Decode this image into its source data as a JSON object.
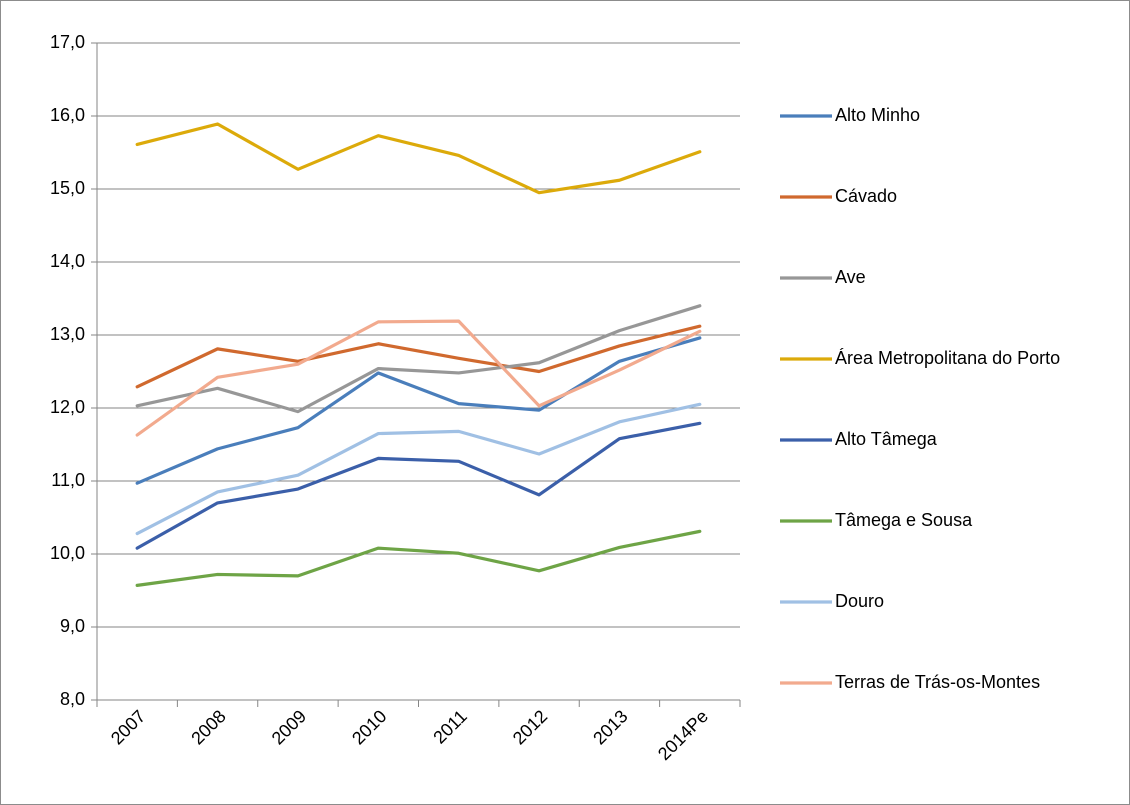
{
  "chart_data": {
    "type": "line",
    "categories": [
      "2007",
      "2008",
      "2009",
      "2010",
      "2011",
      "2012",
      "2013",
      "2014Pe"
    ],
    "series": [
      {
        "name": "Alto Minho",
        "color": "#4a7ebb",
        "values": [
          10.97,
          11.44,
          11.73,
          12.48,
          12.06,
          11.97,
          12.64,
          12.96
        ]
      },
      {
        "name": "Cávado",
        "color": "#d0692e",
        "values": [
          12.29,
          12.81,
          12.64,
          12.88,
          12.68,
          12.5,
          12.85,
          13.12
        ]
      },
      {
        "name": "Ave",
        "color": "#979797",
        "values": [
          12.03,
          12.27,
          11.95,
          12.54,
          12.48,
          12.62,
          13.06,
          13.4
        ]
      },
      {
        "name": "Área Metropolitana do Porto",
        "color": "#dcaa0a",
        "values": [
          15.61,
          15.89,
          15.27,
          15.73,
          15.46,
          14.95,
          15.12,
          15.51
        ]
      },
      {
        "name": "Alto Tâmega",
        "color": "#3b5fa9",
        "values": [
          10.08,
          10.7,
          10.89,
          11.31,
          11.27,
          10.81,
          11.58,
          11.79
        ]
      },
      {
        "name": "Tâmega e Sousa",
        "color": "#6ea446",
        "values": [
          9.57,
          9.72,
          9.7,
          10.08,
          10.01,
          9.77,
          10.09,
          10.31
        ]
      },
      {
        "name": "Douro",
        "color": "#a0c0e4",
        "values": [
          10.28,
          10.85,
          11.08,
          11.65,
          11.68,
          11.37,
          11.81,
          12.05
        ]
      },
      {
        "name": "Terras de Trás-os-Montes",
        "color": "#f2aa8e",
        "values": [
          11.63,
          12.42,
          12.6,
          13.18,
          13.19,
          12.03,
          12.52,
          13.05
        ]
      }
    ],
    "ylim": [
      8,
      17
    ],
    "yticks": [
      {
        "value": 8,
        "label": "8,0"
      },
      {
        "value": 9,
        "label": "9,0"
      },
      {
        "value": 10,
        "label": "10,0"
      },
      {
        "value": 11,
        "label": "11,0"
      },
      {
        "value": 12,
        "label": "12,0"
      },
      {
        "value": 13,
        "label": "13,0"
      },
      {
        "value": 14,
        "label": "14,0"
      },
      {
        "value": 15,
        "label": "15,0"
      },
      {
        "value": 16,
        "label": "16,0"
      },
      {
        "value": 17,
        "label": "17,0"
      }
    ],
    "grid": true,
    "legend": "right"
  }
}
